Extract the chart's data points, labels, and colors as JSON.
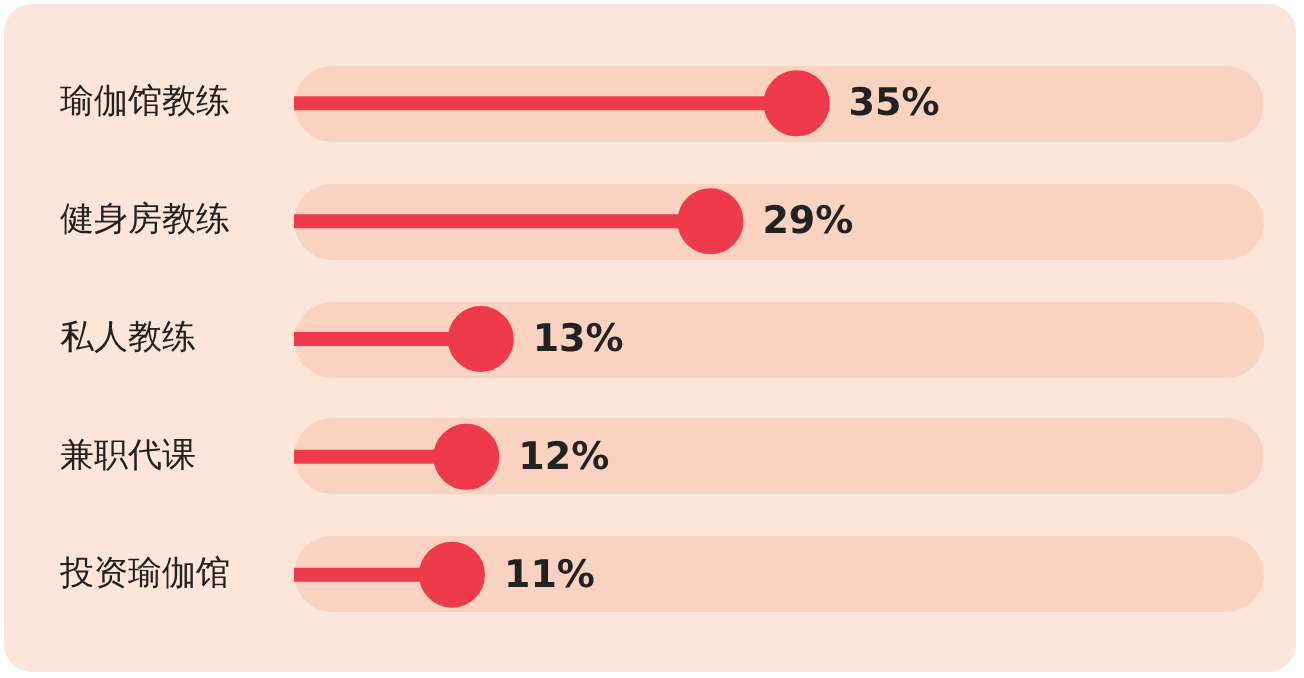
{
  "chart_data": {
    "type": "lollipop",
    "orientation": "horizontal",
    "categories": [
      "瑜伽馆教练",
      "健身房教练",
      "私人教练",
      "兼职代课",
      "投资瑜伽馆"
    ],
    "series": [
      {
        "color": "#ee3a4a",
        "values": [
          35,
          29,
          13,
          12,
          11
        ],
        "value_labels": [
          "35%",
          "29%",
          "13%",
          "12%",
          "11%"
        ]
      }
    ]
  }
}
